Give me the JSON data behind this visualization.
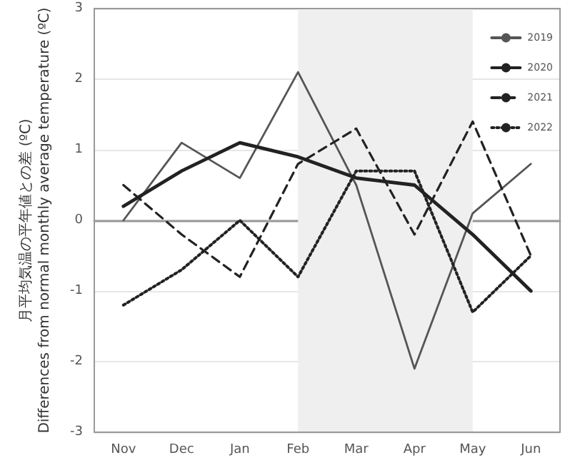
{
  "chart_data": {
    "type": "line",
    "ylabel": "月平均気温の平年値との差 (ºC)\nDifferences from normal monthly average temperature (ºC)",
    "categories": [
      "Nov",
      "Dec",
      "Jan",
      "Feb",
      "Mar",
      "Apr",
      "May",
      "Jun"
    ],
    "series": [
      {
        "name": "2019",
        "color": "#555555",
        "line_style": "solid",
        "values": [
          0,
          1.1,
          0.6,
          2.1,
          0.5,
          -2.1,
          0.1,
          0.8
        ]
      },
      {
        "name": "2020",
        "color": "#222222",
        "line_style": "solid",
        "values": [
          0.2,
          0.7,
          1.1,
          0.9,
          0.6,
          0.5,
          -0.2,
          -1.0
        ]
      },
      {
        "name": "2021",
        "color": "#222222",
        "line_style": "dashed",
        "values": [
          0.5,
          -0.2,
          -0.8,
          0.8,
          1.3,
          -0.2,
          1.4,
          -0.5
        ]
      },
      {
        "name": "2022",
        "color": "#222222",
        "line_style": "dotted",
        "values": [
          -1.2,
          -0.7,
          0,
          -0.8,
          0.7,
          0.7,
          -1.3,
          -0.5
        ]
      }
    ],
    "ylim": [
      -3,
      3
    ],
    "yticks": [
      -3,
      -2,
      -1,
      0,
      1,
      2,
      3
    ],
    "bands": [
      {
        "axis": "x",
        "from": "Feb",
        "to": "May",
        "color": "#efefef"
      }
    ],
    "grid": "y",
    "legend": "top right",
    "marker": "none"
  }
}
